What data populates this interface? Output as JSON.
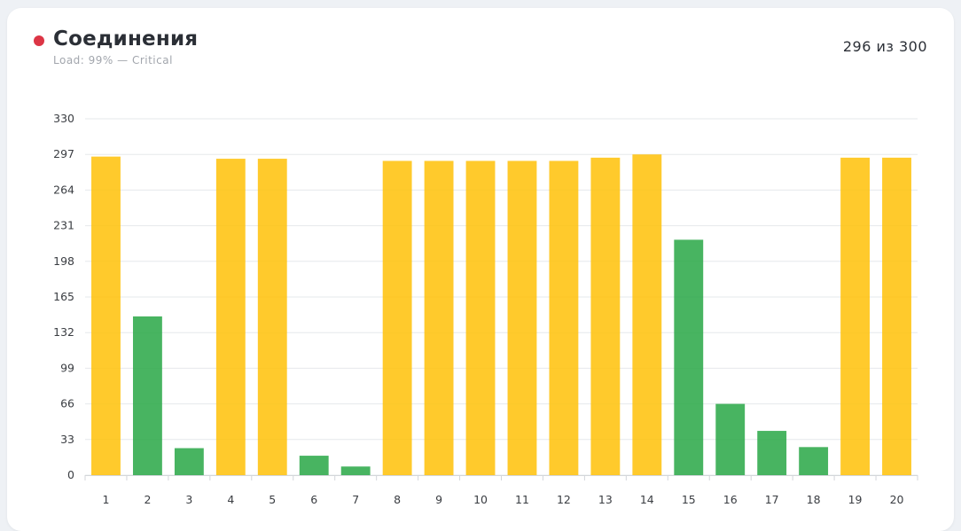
{
  "header": {
    "title": "Соединения",
    "subtitle": "Load: 99% — Critical",
    "count": "296 из 300",
    "status_color": "#dc3545"
  },
  "chart_data": {
    "type": "bar",
    "categories": [
      "1",
      "2",
      "3",
      "4",
      "5",
      "6",
      "7",
      "8",
      "9",
      "10",
      "11",
      "12",
      "13",
      "14",
      "15",
      "16",
      "17",
      "18",
      "19",
      "20"
    ],
    "values": [
      295,
      147,
      25,
      293,
      293,
      18,
      8,
      291,
      291,
      291,
      291,
      291,
      294,
      297,
      218,
      66,
      41,
      26,
      294,
      294
    ],
    "yticks": [
      0,
      33,
      66,
      99,
      132,
      165,
      198,
      231,
      264,
      297,
      330
    ],
    "ylim": [
      0,
      330
    ],
    "threshold": 270,
    "colors": {
      "high": "#ffc107",
      "normal": "#28a745"
    },
    "grid": true,
    "title": "",
    "xlabel": "",
    "ylabel": ""
  }
}
